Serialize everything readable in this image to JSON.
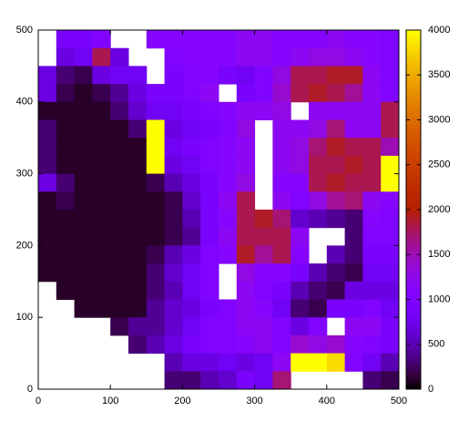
{
  "chart_data": {
    "type": "heatmap",
    "xlim": [
      0,
      500
    ],
    "ylim": [
      0,
      500
    ],
    "zlim": [
      0,
      4000
    ],
    "xticks": [
      0,
      100,
      200,
      300,
      400,
      500
    ],
    "yticks": [
      0,
      100,
      200,
      300,
      400,
      500
    ],
    "zticks": [
      0,
      500,
      1000,
      1500,
      2000,
      2500,
      3000,
      3500,
      4000
    ],
    "z": [
      [
        null,
        900,
        900,
        1000,
        null,
        null,
        1100,
        1100,
        1100,
        1100,
        1100,
        1200,
        1200,
        1100,
        1100,
        1100,
        1200,
        1100,
        1100,
        1000
      ],
      [
        null,
        700,
        800,
        1800,
        700,
        null,
        null,
        1000,
        1100,
        1100,
        1100,
        1200,
        1200,
        1100,
        1200,
        1300,
        1300,
        1200,
        1100,
        1000
      ],
      [
        700,
        300,
        200,
        700,
        800,
        800,
        null,
        900,
        1000,
        1100,
        900,
        800,
        1000,
        1300,
        1800,
        1800,
        1900,
        1900,
        1200,
        1000
      ],
      [
        700,
        200,
        100,
        200,
        400,
        700,
        900,
        900,
        1000,
        1200,
        null,
        900,
        1000,
        1400,
        1800,
        1900,
        1800,
        1600,
        1200,
        1000
      ],
      [
        100,
        100,
        100,
        100,
        300,
        600,
        800,
        800,
        900,
        1000,
        1100,
        1200,
        1200,
        1300,
        null,
        1200,
        1200,
        1200,
        1200,
        1800
      ],
      [
        300,
        100,
        100,
        100,
        100,
        300,
        4000,
        700,
        800,
        900,
        1000,
        1300,
        null,
        1200,
        1200,
        1300,
        1700,
        1200,
        1200,
        1800
      ],
      [
        300,
        100,
        100,
        100,
        100,
        100,
        4000,
        800,
        900,
        1000,
        1100,
        1200,
        null,
        1200,
        1300,
        1700,
        1900,
        1800,
        1800,
        1500
      ],
      [
        300,
        100,
        100,
        100,
        100,
        100,
        4000,
        700,
        800,
        1000,
        1100,
        1200,
        null,
        1200,
        1300,
        1800,
        1800,
        1900,
        1800,
        4000
      ],
      [
        700,
        300,
        100,
        100,
        100,
        100,
        200,
        500,
        700,
        900,
        1100,
        1300,
        null,
        1100,
        1100,
        1800,
        1900,
        1800,
        1800,
        4000
      ],
      [
        100,
        200,
        100,
        100,
        100,
        100,
        100,
        200,
        600,
        900,
        1200,
        1800,
        null,
        1200,
        1000,
        1300,
        1600,
        1700,
        1200,
        1100
      ],
      [
        100,
        100,
        100,
        100,
        100,
        100,
        100,
        200,
        500,
        900,
        1100,
        1800,
        1900,
        1700,
        600,
        500,
        400,
        300,
        1100,
        1000
      ],
      [
        100,
        100,
        100,
        100,
        100,
        100,
        100,
        200,
        400,
        900,
        1200,
        1800,
        1800,
        1800,
        1200,
        null,
        null,
        300,
        1000,
        1000
      ],
      [
        100,
        100,
        100,
        100,
        100,
        100,
        200,
        500,
        700,
        1000,
        1100,
        1900,
        1600,
        1800,
        1100,
        null,
        500,
        300,
        900,
        900
      ],
      [
        100,
        100,
        100,
        100,
        100,
        100,
        300,
        600,
        800,
        1000,
        null,
        1300,
        1100,
        1100,
        900,
        500,
        300,
        200,
        800,
        800
      ],
      [
        null,
        100,
        100,
        100,
        100,
        100,
        300,
        500,
        800,
        1000,
        null,
        1200,
        1000,
        900,
        500,
        300,
        200,
        700,
        700,
        700
      ],
      [
        null,
        null,
        100,
        100,
        100,
        100,
        400,
        600,
        700,
        900,
        1000,
        1200,
        1100,
        800,
        300,
        200,
        900,
        900,
        1000,
        800
      ],
      [
        null,
        null,
        null,
        null,
        200,
        400,
        400,
        600,
        800,
        1000,
        1000,
        1200,
        1200,
        1000,
        700,
        1000,
        null,
        1200,
        1200,
        900
      ],
      [
        null,
        null,
        null,
        null,
        null,
        300,
        500,
        700,
        900,
        1000,
        1000,
        1100,
        1200,
        1000,
        1400,
        1300,
        1400,
        1100,
        1000,
        900
      ],
      [
        null,
        null,
        null,
        null,
        null,
        null,
        null,
        500,
        700,
        700,
        800,
        700,
        800,
        1200,
        4000,
        4000,
        3800,
        1000,
        800,
        500
      ],
      [
        null,
        null,
        null,
        null,
        null,
        null,
        null,
        300,
        300,
        500,
        600,
        900,
        800,
        1700,
        null,
        null,
        null,
        null,
        300,
        200
      ]
    ]
  }
}
